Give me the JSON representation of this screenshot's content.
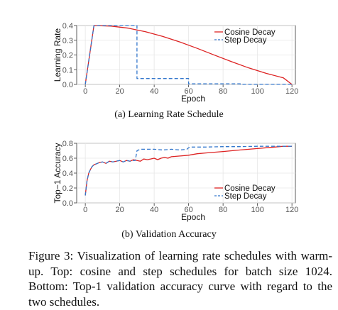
{
  "chart_data": [
    {
      "type": "line",
      "xlabel": "Epoch",
      "ylabel": "Learning Rate",
      "xlim": [
        -5,
        122
      ],
      "ylim": [
        0,
        0.4
      ],
      "x_ticks": [
        "0",
        "20",
        "40",
        "60",
        "80",
        "100",
        "120"
      ],
      "x_tick_values": [
        0,
        20,
        40,
        60,
        80,
        100,
        120
      ],
      "y_ticks": [
        "0.0",
        "0.1",
        "0.2",
        "0.3",
        "0.4"
      ],
      "y_tick_values": [
        0,
        0.1,
        0.2,
        0.3,
        0.4
      ],
      "legend_position": "top-right",
      "series": [
        {
          "name": "Cosine Decay",
          "color": "#dd2222",
          "style": "solid",
          "x": [
            0,
            5,
            15,
            25,
            35,
            45,
            55,
            65,
            75,
            85,
            95,
            105,
            115,
            120
          ],
          "y": [
            0.0,
            0.4,
            0.396,
            0.382,
            0.358,
            0.326,
            0.288,
            0.245,
            0.199,
            0.154,
            0.112,
            0.075,
            0.045,
            0.0
          ]
        },
        {
          "name": "Step Decay",
          "color": "#3377cc",
          "style": "dashed",
          "x": [
            0,
            5,
            30,
            30,
            60,
            60,
            90,
            90,
            120
          ],
          "y": [
            0.0,
            0.4,
            0.4,
            0.04,
            0.04,
            0.004,
            0.004,
            0.0004,
            0.0004
          ]
        }
      ],
      "caption": "(a) Learning Rate Schedule"
    },
    {
      "type": "line",
      "xlabel": "Epoch",
      "ylabel": "Top−1 Accuracy",
      "xlim": [
        -5,
        122
      ],
      "ylim": [
        0,
        0.8
      ],
      "x_ticks": [
        "0",
        "20",
        "40",
        "60",
        "80",
        "100",
        "120"
      ],
      "x_tick_values": [
        0,
        20,
        40,
        60,
        80,
        100,
        120
      ],
      "y_ticks": [
        "0.0",
        "0.2",
        "0.4",
        "0.6",
        "0.8"
      ],
      "y_tick_values": [
        0,
        0.2,
        0.4,
        0.6,
        0.8
      ],
      "legend_position": "bottom-right",
      "series": [
        {
          "name": "Cosine Decay",
          "color": "#dd2222",
          "style": "solid",
          "x": [
            0,
            1,
            2,
            3,
            4,
            5,
            6,
            8,
            10,
            12,
            14,
            16,
            18,
            20,
            22,
            24,
            26,
            28,
            30,
            32,
            34,
            36,
            38,
            40,
            42,
            44,
            46,
            48,
            50,
            55,
            60,
            65,
            70,
            75,
            80,
            85,
            90,
            95,
            100,
            105,
            110,
            115,
            120
          ],
          "y": [
            0.1,
            0.3,
            0.4,
            0.45,
            0.49,
            0.51,
            0.52,
            0.54,
            0.55,
            0.53,
            0.56,
            0.55,
            0.56,
            0.57,
            0.55,
            0.57,
            0.56,
            0.58,
            0.57,
            0.56,
            0.59,
            0.58,
            0.59,
            0.6,
            0.58,
            0.6,
            0.61,
            0.6,
            0.62,
            0.63,
            0.64,
            0.66,
            0.67,
            0.68,
            0.69,
            0.7,
            0.71,
            0.72,
            0.73,
            0.74,
            0.75,
            0.76,
            0.76
          ]
        },
        {
          "name": "Step Decay",
          "color": "#3377cc",
          "style": "dashed",
          "x": [
            0,
            1,
            2,
            3,
            4,
            5,
            6,
            8,
            10,
            12,
            14,
            16,
            18,
            20,
            22,
            24,
            26,
            28,
            29,
            30,
            31,
            32,
            35,
            40,
            45,
            50,
            55,
            59,
            60,
            61,
            65,
            70,
            80,
            90,
            100,
            110,
            120
          ],
          "y": [
            0.1,
            0.3,
            0.4,
            0.45,
            0.49,
            0.51,
            0.52,
            0.54,
            0.55,
            0.53,
            0.56,
            0.55,
            0.56,
            0.57,
            0.55,
            0.57,
            0.56,
            0.57,
            0.57,
            0.7,
            0.71,
            0.72,
            0.72,
            0.72,
            0.71,
            0.72,
            0.71,
            0.72,
            0.74,
            0.75,
            0.75,
            0.75,
            0.755,
            0.755,
            0.76,
            0.76,
            0.76
          ]
        }
      ],
      "caption": "(b) Validation Accuracy"
    }
  ],
  "figure_caption": "Figure 3: Visualization of learning rate schedules with warm-up. Top: cosine and step schedules for batch size 1024. Bottom: Top-1 validation accuracy curve with regard to the two schedules."
}
